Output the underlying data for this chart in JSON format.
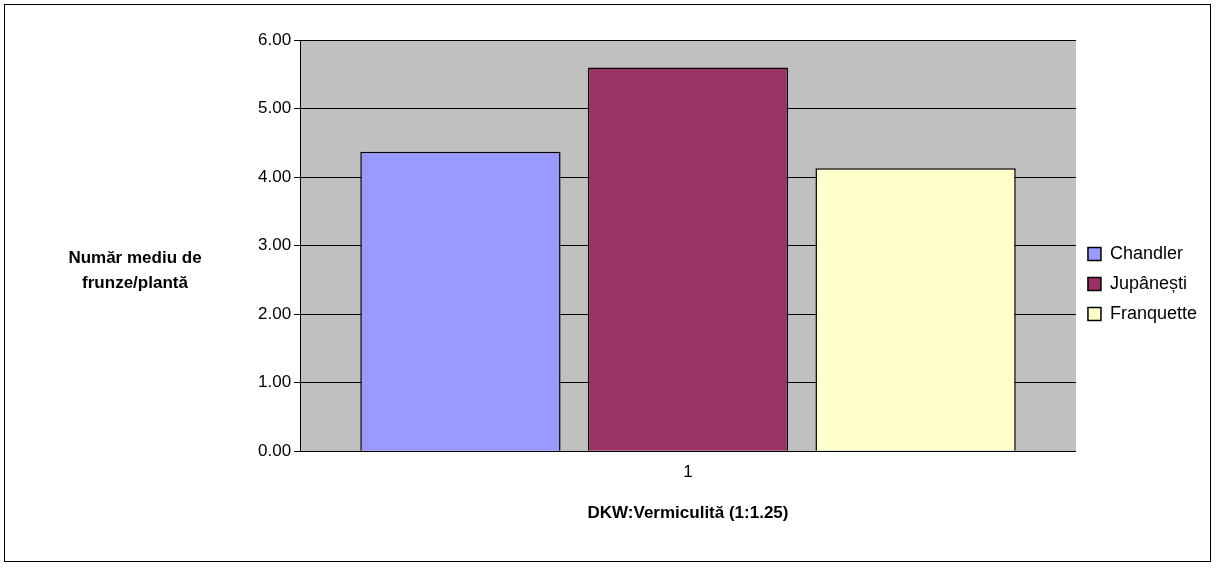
{
  "chart_data": {
    "type": "bar",
    "xlabel": "DKW:Vermiculită (1:1.25)",
    "ylabel": "Număr mediu de frunze/plantă",
    "categories": [
      "1"
    ],
    "series": [
      {
        "name": "Chandler",
        "color": "#9999ff",
        "values": [
          4.37
        ]
      },
      {
        "name": "Jupânești",
        "color": "#993366",
        "values": [
          5.6
        ]
      },
      {
        "name": "Franquette",
        "color": "#ffffcc",
        "values": [
          4.13
        ]
      }
    ],
    "ylim": [
      0,
      6
    ],
    "yticks": [
      {
        "value": 0,
        "label": "0.00"
      },
      {
        "value": 1,
        "label": "1.00"
      },
      {
        "value": 2,
        "label": "2.00"
      },
      {
        "value": 3,
        "label": "3.00"
      },
      {
        "value": 4,
        "label": "4.00"
      },
      {
        "value": 5,
        "label": "5.00"
      },
      {
        "value": 6,
        "label": "6.00"
      }
    ],
    "grid": "y",
    "legend": "right"
  }
}
